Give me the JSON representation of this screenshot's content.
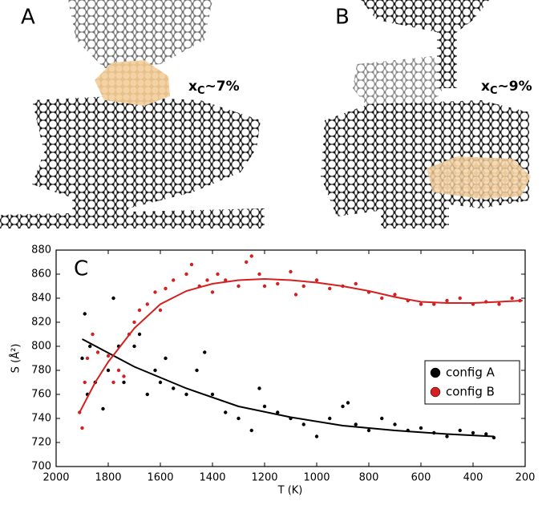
{
  "panels": [
    {
      "label": "A",
      "annotation": {
        "symbol": "x",
        "sub": "C",
        "rest": "~7%"
      }
    },
    {
      "label": "B",
      "annotation": {
        "symbol": "x",
        "sub": "C",
        "rest": "~9%"
      }
    }
  ],
  "chart_data": {
    "type": "scatter",
    "panel_label": "C",
    "x_label": "T (K)",
    "y_label": "S (Å²)",
    "xlim": [
      2000,
      200
    ],
    "ylim": [
      700,
      880
    ],
    "xticks": [
      2000,
      1800,
      1600,
      1400,
      1200,
      1000,
      800,
      600,
      400,
      200
    ],
    "yticks": [
      700,
      720,
      740,
      760,
      780,
      800,
      820,
      840,
      860,
      880
    ],
    "legend": "lower right",
    "series": [
      {
        "name": "config A",
        "color": "#000000",
        "x": [
          1900,
          1890,
          1880,
          1870,
          1850,
          1820,
          1800,
          1780,
          1760,
          1740,
          1700,
          1680,
          1650,
          1620,
          1600,
          1580,
          1550,
          1500,
          1460,
          1430,
          1400,
          1350,
          1300,
          1250,
          1220,
          1200,
          1150,
          1100,
          1050,
          1000,
          950,
          900,
          880,
          850,
          800,
          750,
          700,
          650,
          600,
          550,
          500,
          450,
          400,
          350,
          320
        ],
        "values": [
          790,
          827,
          760,
          800,
          770,
          748,
          780,
          840,
          800,
          770,
          800,
          810,
          760,
          780,
          770,
          790,
          765,
          760,
          780,
          795,
          760,
          745,
          740,
          730,
          765,
          750,
          745,
          740,
          735,
          725,
          740,
          750,
          753,
          735,
          730,
          740,
          735,
          730,
          732,
          728,
          725,
          730,
          728,
          727,
          724
        ]
      },
      {
        "name": "config B",
        "color": "#d42020",
        "x": [
          1910,
          1900,
          1890,
          1880,
          1860,
          1840,
          1800,
          1780,
          1760,
          1740,
          1720,
          1700,
          1680,
          1650,
          1620,
          1600,
          1580,
          1550,
          1500,
          1480,
          1450,
          1420,
          1400,
          1380,
          1350,
          1300,
          1270,
          1250,
          1220,
          1200,
          1150,
          1100,
          1080,
          1050,
          1000,
          950,
          900,
          850,
          800,
          750,
          700,
          650,
          600,
          550,
          500,
          450,
          400,
          350,
          300,
          250,
          220
        ],
        "values": [
          745,
          732,
          770,
          790,
          810,
          795,
          792,
          770,
          780,
          775,
          810,
          820,
          830,
          835,
          845,
          830,
          848,
          855,
          860,
          868,
          850,
          855,
          845,
          860,
          855,
          850,
          870,
          875,
          860,
          850,
          852,
          862,
          843,
          850,
          855,
          848,
          850,
          852,
          845,
          840,
          843,
          838,
          835,
          835,
          838,
          840,
          835,
          837,
          835,
          840,
          838
        ]
      }
    ],
    "fits": [
      {
        "color": "#000000",
        "x": [
          1900,
          1700,
          1500,
          1300,
          1100,
          900,
          700,
          500,
          320
        ],
        "values": [
          806,
          783,
          765,
          750,
          741,
          734,
          730,
          727,
          725
        ]
      },
      {
        "color": "#d42020",
        "x": [
          1910,
          1850,
          1800,
          1700,
          1600,
          1500,
          1400,
          1300,
          1200,
          1100,
          1000,
          900,
          800,
          700,
          600,
          500,
          400,
          300,
          210
        ],
        "values": [
          745,
          770,
          787,
          815,
          835,
          846,
          852,
          855,
          856,
          855,
          853,
          850,
          846,
          841,
          837,
          836,
          836,
          837,
          838
        ]
      }
    ]
  }
}
